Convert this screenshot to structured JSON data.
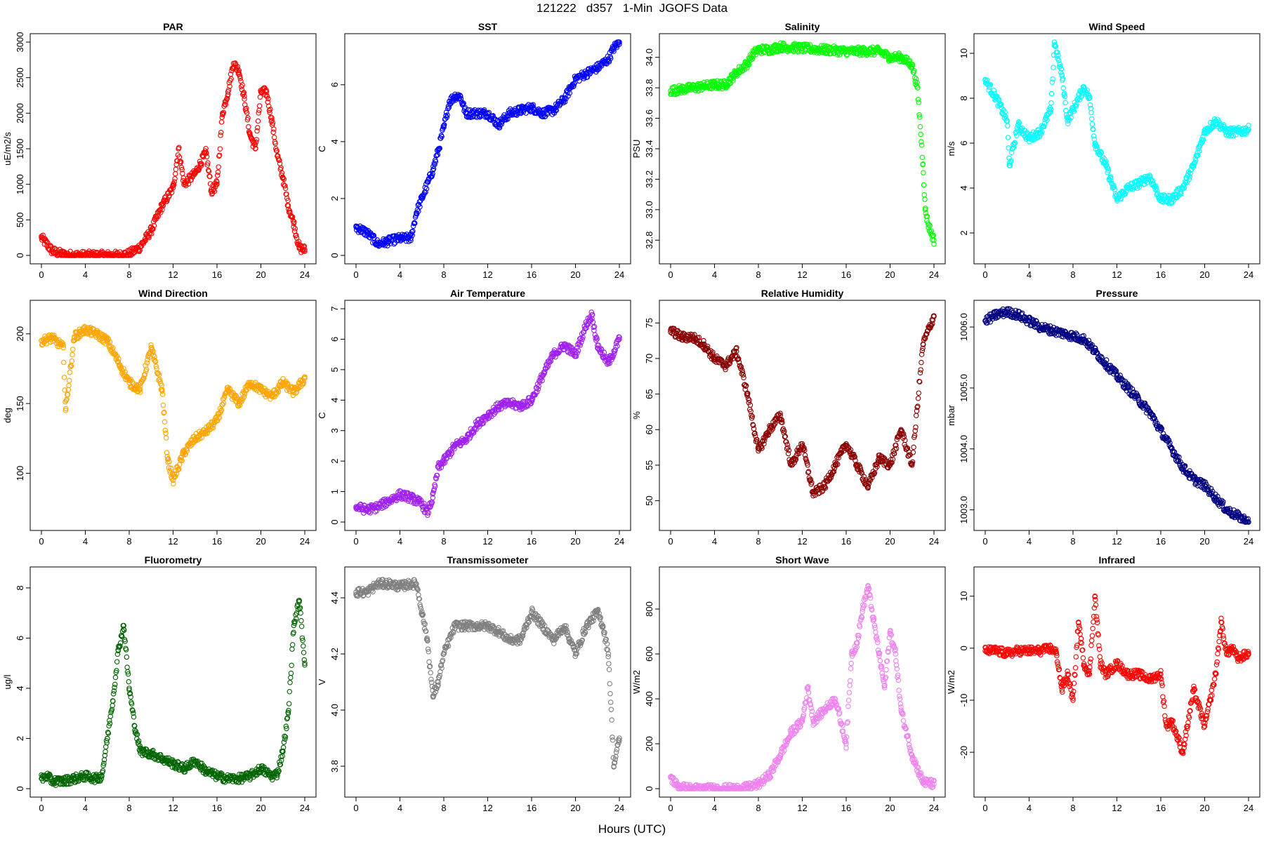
{
  "figure": {
    "title": "121222   d357   1-Min  JGOFS Data",
    "xlabel": "Hours (UTC)"
  },
  "chart_data": [
    {
      "type": "scatter",
      "title": "PAR",
      "ylabel": "uE/m2/s",
      "color": "#ff0000",
      "xlim": [
        0,
        24
      ],
      "ylim": [
        0,
        3000
      ],
      "yticks": [
        "0",
        "500",
        "1000",
        "1500",
        "2000",
        "2500",
        "3000"
      ],
      "x": [
        0,
        1,
        2,
        3,
        4,
        5,
        6,
        7,
        8,
        9,
        10,
        11,
        12,
        12.5,
        13,
        14,
        15,
        15.5,
        16,
        16.5,
        17,
        17.5,
        18,
        18.5,
        19,
        19.5,
        20,
        20.5,
        21,
        21.5,
        22,
        22.5,
        23,
        23.5,
        24
      ],
      "y": [
        250,
        60,
        10,
        0,
        0,
        0,
        0,
        0,
        20,
        120,
        350,
        700,
        950,
        1500,
        1000,
        1150,
        1450,
        900,
        1000,
        2000,
        2300,
        2700,
        2600,
        2200,
        1700,
        1500,
        2300,
        2300,
        1900,
        1400,
        1100,
        700,
        450,
        100,
        80
      ]
    },
    {
      "type": "scatter",
      "title": "SST",
      "ylabel": "C",
      "color": "#0000ff",
      "xlim": [
        0,
        24
      ],
      "ylim": [
        0,
        7.5
      ],
      "yticks": [
        "0",
        "2",
        "4",
        "6"
      ],
      "x": [
        0,
        1,
        2,
        3,
        4,
        5,
        5.5,
        6,
        7,
        7.5,
        8,
        8.5,
        9,
        9.5,
        10,
        12,
        13,
        14,
        15,
        16,
        17,
        18,
        19,
        20,
        21,
        22,
        23,
        23.5,
        24
      ],
      "y": [
        1.0,
        0.8,
        0.4,
        0.5,
        0.6,
        0.6,
        1.5,
        2.0,
        3.0,
        3.7,
        4.5,
        5.4,
        5.6,
        5.6,
        5.0,
        5.0,
        4.6,
        5.0,
        5.1,
        5.2,
        5.0,
        5.1,
        5.5,
        6.2,
        6.4,
        6.6,
        6.9,
        7.3,
        7.5
      ]
    },
    {
      "type": "scatter",
      "title": "Salinity",
      "ylabel": "PSU",
      "color": "#00ff00",
      "xlim": [
        0,
        24
      ],
      "ylim": [
        32.7,
        34.1
      ],
      "yticks": [
        "32.8",
        "33.0",
        "33.2",
        "33.4",
        "33.6",
        "33.8",
        "34.0"
      ],
      "x": [
        0,
        1,
        2,
        3,
        4,
        5,
        5.5,
        6,
        7,
        7.5,
        8,
        9,
        10,
        12,
        14,
        16,
        18,
        19,
        20,
        21,
        22,
        22.5,
        23,
        23.2,
        23.5,
        24
      ],
      "y": [
        33.78,
        33.79,
        33.8,
        33.81,
        33.82,
        33.82,
        33.86,
        33.9,
        33.96,
        34.02,
        34.05,
        34.05,
        34.07,
        34.06,
        34.05,
        34.04,
        34.04,
        34.04,
        34.0,
        34.0,
        33.95,
        33.8,
        33.3,
        33.0,
        32.9,
        32.8
      ]
    },
    {
      "type": "scatter",
      "title": "Wind Speed",
      "ylabel": "m/s",
      "color": "#00ffff",
      "xlim": [
        0,
        24
      ],
      "ylim": [
        1,
        10.5
      ],
      "yticks": [
        "2",
        "4",
        "6",
        "8",
        "10"
      ],
      "x": [
        0,
        1,
        2,
        2.2,
        3,
        4,
        5,
        6,
        6.3,
        7,
        7.5,
        8,
        9,
        9.5,
        10,
        11,
        12,
        13,
        14,
        15,
        16,
        17,
        18,
        19,
        20,
        21,
        22,
        23,
        24
      ],
      "y": [
        8.8,
        8.0,
        7.0,
        5.0,
        6.8,
        6.2,
        6.5,
        7.5,
        10.5,
        9.0,
        7.0,
        7.5,
        8.5,
        8.0,
        6.0,
        5.0,
        3.5,
        4.0,
        4.2,
        4.5,
        3.5,
        3.5,
        4.0,
        5.0,
        6.5,
        7.0,
        6.5,
        6.5,
        6.6
      ]
    },
    {
      "type": "scatter",
      "title": "Wind Direction",
      "ylabel": "deg",
      "color": "#ffa500",
      "xlim": [
        0,
        24
      ],
      "ylim": [
        65,
        218
      ],
      "yticks": [
        "100",
        "150",
        "200"
      ],
      "x": [
        0,
        1,
        2,
        2.2,
        3,
        4,
        5,
        6,
        7,
        8,
        9,
        10,
        11,
        11.5,
        12,
        13,
        14,
        15,
        16,
        17,
        18,
        19,
        20,
        21,
        22,
        23,
        24
      ],
      "y": [
        195,
        197,
        190,
        145,
        198,
        203,
        200,
        195,
        180,
        165,
        160,
        190,
        160,
        110,
        95,
        115,
        125,
        130,
        138,
        160,
        150,
        165,
        160,
        155,
        165,
        158,
        168
      ]
    },
    {
      "type": "scatter",
      "title": "Air Temperature",
      "ylabel": "C",
      "color": "#a020f0",
      "xlim": [
        0,
        24
      ],
      "ylim": [
        0,
        7
      ],
      "yticks": [
        "0",
        "1",
        "2",
        "3",
        "4",
        "5",
        "6",
        "7"
      ],
      "x": [
        0,
        1,
        2,
        3,
        4,
        5,
        6,
        6.5,
        7,
        7.5,
        8,
        9,
        10,
        11,
        12,
        13,
        14,
        15,
        16,
        17,
        18,
        19,
        20,
        21,
        21.5,
        22,
        23,
        24
      ],
      "y": [
        0.5,
        0.4,
        0.5,
        0.7,
        0.9,
        0.8,
        0.6,
        0.3,
        0.8,
        1.8,
        2.0,
        2.5,
        2.7,
        3.2,
        3.5,
        3.8,
        3.9,
        3.8,
        4.0,
        4.8,
        5.5,
        5.8,
        5.5,
        6.5,
        6.8,
        5.8,
        5.2,
        6.0
      ]
    },
    {
      "type": "scatter",
      "title": "Relative Humidity",
      "ylabel": "%",
      "color": "#8b0000",
      "xlim": [
        0,
        24
      ],
      "ylim": [
        47,
        77
      ],
      "yticks": [
        "50",
        "55",
        "60",
        "65",
        "70",
        "75"
      ],
      "x": [
        0,
        1,
        2,
        3,
        4,
        5,
        6,
        7,
        8,
        9,
        10,
        11,
        12,
        13,
        14,
        15,
        16,
        17,
        18,
        19,
        20,
        21,
        22,
        23,
        24
      ],
      "y": [
        74,
        73,
        73,
        72,
        70,
        69,
        71,
        65,
        57,
        60,
        62,
        55,
        58,
        51,
        52,
        55,
        58,
        55,
        52,
        56,
        55,
        60,
        55,
        72,
        76
      ]
    },
    {
      "type": "scatter",
      "title": "Pressure",
      "ylabel": "mbar",
      "color": "#000080",
      "xlim": [
        0,
        24
      ],
      "ylim": [
        1002.8,
        1006.3
      ],
      "yticks": [
        "1003.0",
        "1004.0",
        "1005.0",
        "1006.0"
      ],
      "x": [
        0,
        1,
        2,
        3,
        4,
        5,
        6,
        7,
        8,
        9,
        10,
        11,
        12,
        13,
        14,
        15,
        16,
        17,
        18,
        19,
        20,
        21,
        22,
        23,
        24
      ],
      "y": [
        1006.1,
        1006.2,
        1006.25,
        1006.2,
        1006.1,
        1006.0,
        1005.95,
        1005.9,
        1005.85,
        1005.8,
        1005.6,
        1005.4,
        1005.2,
        1005.0,
        1004.8,
        1004.6,
        1004.3,
        1004.0,
        1003.7,
        1003.5,
        1003.4,
        1003.2,
        1003.0,
        1002.9,
        1002.8
      ]
    },
    {
      "type": "scatter",
      "title": "Fluorometry",
      "ylabel": "ug/l",
      "color": "#006400",
      "xlim": [
        0,
        24
      ],
      "ylim": [
        0,
        8.5
      ],
      "yticks": [
        "0",
        "2",
        "4",
        "6",
        "8"
      ],
      "x": [
        0,
        0.5,
        1,
        2,
        3,
        4,
        5,
        5.5,
        6,
        6.5,
        7,
        7.5,
        8,
        8.5,
        9,
        10,
        11,
        12,
        13,
        14,
        15,
        16,
        17,
        18,
        19,
        20,
        21,
        21.5,
        22,
        22.5,
        23,
        23.5,
        24
      ],
      "y": [
        0.4,
        0.5,
        0.3,
        0.3,
        0.4,
        0.5,
        0.4,
        0.5,
        2.0,
        3.5,
        5.5,
        6.5,
        4.0,
        2.5,
        1.5,
        1.4,
        1.2,
        1.0,
        0.8,
        1.1,
        0.7,
        0.5,
        0.4,
        0.4,
        0.5,
        0.8,
        0.5,
        0.6,
        1.5,
        3.0,
        6.5,
        7.5,
        5.0
      ]
    },
    {
      "type": "scatter",
      "title": "Transmissometer",
      "ylabel": "V",
      "color": "#808080",
      "xlim": [
        0,
        24
      ],
      "ylim": [
        3.72,
        4.48
      ],
      "yticks": [
        "3.8",
        "4.0",
        "4.2",
        "4.4"
      ],
      "x": [
        0,
        1,
        2,
        3,
        4,
        5,
        5.5,
        6,
        6.5,
        7,
        7.5,
        8,
        9,
        10,
        11,
        12,
        13,
        14,
        15,
        16,
        17,
        18,
        19,
        20,
        21,
        22,
        22.5,
        23,
        23.5,
        24
      ],
      "y": [
        4.42,
        4.42,
        4.45,
        4.45,
        4.44,
        4.45,
        4.45,
        4.35,
        4.25,
        4.05,
        4.1,
        4.2,
        4.3,
        4.3,
        4.3,
        4.3,
        4.28,
        4.25,
        4.25,
        4.35,
        4.3,
        4.25,
        4.3,
        4.2,
        4.3,
        4.35,
        4.3,
        4.2,
        3.8,
        3.9
      ]
    },
    {
      "type": "scatter",
      "title": "Short Wave",
      "ylabel": "W/m2",
      "color": "#ee82ee",
      "xlim": [
        0,
        24
      ],
      "ylim": [
        0,
        950
      ],
      "yticks": [
        "0",
        "200",
        "400",
        "600",
        "800"
      ],
      "x": [
        0,
        0.5,
        1,
        2,
        3,
        4,
        5,
        6,
        7,
        8,
        9,
        10,
        11,
        12,
        12.5,
        13,
        14,
        15,
        16,
        16.5,
        17,
        17.5,
        18,
        18.5,
        19,
        19.5,
        20,
        20.5,
        21,
        22,
        23,
        24
      ],
      "y": [
        50,
        20,
        5,
        0,
        0,
        0,
        0,
        0,
        5,
        20,
        60,
        150,
        250,
        300,
        450,
        300,
        350,
        400,
        200,
        600,
        650,
        800,
        900,
        750,
        600,
        450,
        700,
        600,
        350,
        150,
        30,
        20
      ]
    },
    {
      "type": "scatter",
      "title": "Infrared",
      "ylabel": "W/m2",
      "color": "#ff0000",
      "xlim": [
        0,
        24
      ],
      "ylim": [
        -27,
        14
      ],
      "yticks": [
        "-20",
        "-10",
        "0",
        "10"
      ],
      "x": [
        0,
        1,
        2,
        3,
        4,
        5,
        6,
        6.5,
        7,
        7.5,
        8,
        8.5,
        9,
        9.5,
        10,
        10.5,
        11,
        12,
        13,
        14,
        15,
        16,
        16.5,
        17,
        18,
        19,
        20,
        20.5,
        21,
        21.5,
        22,
        22.5,
        23,
        24
      ],
      "y": [
        -0.5,
        -0.5,
        -1,
        -0.5,
        -0.5,
        -0.5,
        0,
        -1,
        -8,
        -5,
        -10,
        5,
        -3,
        -5,
        10,
        -3,
        -5,
        -3,
        -5,
        -5,
        -6,
        -5,
        -15,
        -14,
        -20,
        -8,
        -15,
        -10,
        -5,
        5,
        -1,
        0,
        -2,
        -1
      ]
    }
  ]
}
